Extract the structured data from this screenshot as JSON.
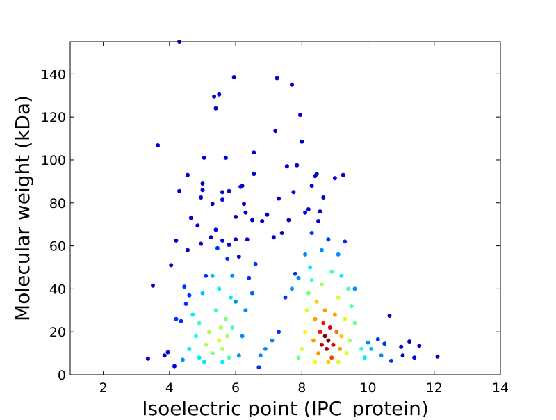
{
  "chart_data": {
    "type": "scatter",
    "title": "",
    "xlabel": "Isoelectric point (IPC_protein)",
    "ylabel": "Molecular weight (kDa)",
    "xlim": [
      1,
      14
    ],
    "ylim": [
      0,
      155
    ],
    "xticks": [
      2,
      4,
      6,
      8,
      10,
      12,
      14
    ],
    "xtick_labels": [
      "2",
      "4",
      "6",
      "8",
      "10",
      "12",
      "14"
    ],
    "yticks": [
      0,
      20,
      40,
      60,
      80,
      100,
      120,
      140
    ],
    "ytick_labels": [
      "0",
      "20",
      "40",
      "60",
      "80",
      "100",
      "120",
      "140"
    ],
    "grid": false,
    "legend": "none",
    "colormap": "jet (point density)",
    "colors": {
      "low_density": "#00008f",
      "mid_low": "#0060ff",
      "mid": "#00e0ff",
      "mid_high": "#f0f000",
      "high": "#ff3000",
      "peak": "#800000"
    },
    "points": [
      [
        3.35,
        7.5,
        0
      ],
      [
        3.5,
        41.5,
        0
      ],
      [
        3.65,
        106.8,
        0
      ],
      [
        3.85,
        9,
        0
      ],
      [
        3.95,
        10.5,
        0
      ],
      [
        4.05,
        51,
        0
      ],
      [
        4.15,
        4,
        0
      ],
      [
        4.2,
        62.5,
        0
      ],
      [
        4.2,
        26,
        0.1
      ],
      [
        4.3,
        155,
        0
      ],
      [
        4.3,
        85.5,
        0
      ],
      [
        4.35,
        25,
        0.1
      ],
      [
        4.45,
        41,
        0.1
      ],
      [
        4.5,
        33,
        0.1
      ],
      [
        4.55,
        93,
        0
      ],
      [
        4.55,
        58,
        0
      ],
      [
        4.6,
        37,
        0.1
      ],
      [
        4.65,
        73,
        0
      ],
      [
        4.85,
        69.5,
        0
      ],
      [
        4.95,
        61,
        0
      ],
      [
        4.95,
        82.5,
        0
      ],
      [
        5.0,
        89,
        0
      ],
      [
        5.0,
        86,
        0
      ],
      [
        5.05,
        101,
        0
      ],
      [
        5.1,
        46,
        0.1
      ],
      [
        5.25,
        64,
        0
      ],
      [
        5.3,
        79.5,
        0
      ],
      [
        5.35,
        129.5,
        0
      ],
      [
        5.4,
        124,
        0
      ],
      [
        5.4,
        67.5,
        0
      ],
      [
        5.45,
        59,
        0.1
      ],
      [
        5.5,
        130.5,
        0
      ],
      [
        5.6,
        62.5,
        0
      ],
      [
        5.6,
        85,
        0
      ],
      [
        5.6,
        81.5,
        0
      ],
      [
        5.7,
        101,
        0
      ],
      [
        5.75,
        54,
        0.1
      ],
      [
        5.8,
        85.5,
        0
      ],
      [
        5.8,
        60.5,
        0
      ],
      [
        5.95,
        138.5,
        0
      ],
      [
        6.0,
        73.5,
        0
      ],
      [
        6.0,
        63,
        0
      ],
      [
        6.1,
        55,
        0
      ],
      [
        6.15,
        87.5,
        0
      ],
      [
        6.2,
        88,
        0
      ],
      [
        6.25,
        79.5,
        0
      ],
      [
        6.3,
        75.5,
        0
      ],
      [
        6.35,
        63,
        0
      ],
      [
        6.5,
        72,
        0
      ],
      [
        6.55,
        103.5,
        0
      ],
      [
        6.55,
        93.5,
        0
      ],
      [
        6.6,
        51.5,
        0.1
      ],
      [
        6.8,
        71.5,
        0
      ],
      [
        6.95,
        74.5,
        0
      ],
      [
        7.15,
        64,
        0
      ],
      [
        7.2,
        113.5,
        0
      ],
      [
        7.25,
        138,
        0
      ],
      [
        7.3,
        82,
        0
      ],
      [
        7.4,
        66,
        0
      ],
      [
        7.55,
        97,
        0
      ],
      [
        7.6,
        72,
        0
      ],
      [
        7.7,
        135,
        0
      ],
      [
        7.75,
        85,
        0
      ],
      [
        7.85,
        97.5,
        0
      ],
      [
        7.95,
        121,
        0
      ],
      [
        8.0,
        108.5,
        0
      ],
      [
        8.1,
        75.5,
        0
      ],
      [
        8.2,
        77,
        0
      ],
      [
        8.3,
        88,
        0
      ],
      [
        8.4,
        92.5,
        0
      ],
      [
        8.45,
        93.5,
        0
      ],
      [
        8.5,
        71.5,
        0
      ],
      [
        8.55,
        76,
        0
      ],
      [
        8.65,
        82.5,
        0
      ],
      [
        9.0,
        91.5,
        0
      ],
      [
        9.25,
        93,
        0
      ],
      [
        9.3,
        62,
        0.1
      ],
      [
        9.6,
        40,
        0.2
      ],
      [
        10.0,
        15,
        0.2
      ],
      [
        10.3,
        16.5,
        0.1
      ],
      [
        10.5,
        14.5,
        0.1
      ],
      [
        10.65,
        27.5,
        0
      ],
      [
        10.7,
        6.5,
        0.1
      ],
      [
        11.0,
        13,
        0
      ],
      [
        11.05,
        9,
        0
      ],
      [
        11.25,
        15.5,
        0
      ],
      [
        11.4,
        8,
        0
      ],
      [
        11.55,
        13.5,
        0
      ],
      [
        12.1,
        8.5,
        0
      ],
      [
        6.7,
        3.5,
        0.1
      ],
      [
        6.75,
        9,
        0.2
      ],
      [
        6.9,
        12,
        0.2
      ],
      [
        7.1,
        16,
        0.2
      ],
      [
        7.3,
        20,
        0.1
      ],
      [
        7.5,
        36,
        0.1
      ],
      [
        7.7,
        40,
        0.2
      ],
      [
        7.8,
        47,
        0.1
      ],
      [
        7.9,
        45,
        0.2
      ],
      [
        8.1,
        56,
        0.2
      ],
      [
        8.3,
        66,
        0.1
      ],
      [
        8.6,
        58,
        0.2
      ],
      [
        8.8,
        63,
        0.1
      ],
      [
        9.1,
        56,
        0.2
      ],
      [
        9.2,
        46,
        0.3
      ],
      [
        9.5,
        32,
        0.4
      ],
      [
        9.6,
        24,
        0.45
      ],
      [
        9.8,
        12,
        0.35
      ],
      [
        9.9,
        8,
        0.3
      ],
      [
        10.1,
        12,
        0.25
      ],
      [
        10.4,
        9,
        0.2
      ],
      [
        6.4,
        45,
        0.1
      ],
      [
        6.5,
        38,
        0.15
      ],
      [
        6.3,
        30,
        0.2
      ],
      [
        6.2,
        18,
        0.2
      ],
      [
        6.1,
        9,
        0.2
      ],
      [
        5.9,
        46,
        0.2
      ],
      [
        6.0,
        34,
        0.2
      ],
      [
        4.4,
        7,
        0.2
      ],
      [
        4.6,
        12,
        0.3
      ],
      [
        4.8,
        18,
        0.35
      ],
      [
        4.7,
        28,
        0.3
      ],
      [
        4.9,
        24,
        0.4
      ],
      [
        5.1,
        14,
        0.5
      ],
      [
        5.2,
        20,
        0.5
      ],
      [
        5.3,
        10,
        0.45
      ],
      [
        5.4,
        30,
        0.4
      ],
      [
        5.5,
        16,
        0.55
      ],
      [
        5.55,
        22,
        0.5
      ],
      [
        5.6,
        12,
        0.5
      ],
      [
        5.7,
        26,
        0.45
      ],
      [
        5.75,
        18,
        0.5
      ],
      [
        5.8,
        8,
        0.4
      ],
      [
        5.85,
        36,
        0.3
      ],
      [
        5.9,
        22,
        0.4
      ],
      [
        5.5,
        40,
        0.3
      ],
      [
        5.3,
        46,
        0.25
      ],
      [
        5.0,
        38,
        0.25
      ],
      [
        4.9,
        8,
        0.3
      ],
      [
        5.05,
        6,
        0.3
      ],
      [
        5.6,
        6,
        0.3
      ],
      [
        7.9,
        8,
        0.45
      ],
      [
        8.0,
        12,
        0.55
      ],
      [
        8.1,
        20,
        0.6
      ],
      [
        8.15,
        30,
        0.55
      ],
      [
        8.2,
        38,
        0.45
      ],
      [
        8.3,
        44,
        0.4
      ],
      [
        8.35,
        16,
        0.7
      ],
      [
        8.4,
        26,
        0.7
      ],
      [
        8.45,
        34,
        0.65
      ],
      [
        8.5,
        10,
        0.7
      ],
      [
        8.55,
        20,
        0.85
      ],
      [
        8.6,
        14,
        0.95
      ],
      [
        8.65,
        24,
        0.85
      ],
      [
        8.7,
        18,
        1.0
      ],
      [
        8.7,
        30,
        0.7
      ],
      [
        8.75,
        12,
        0.95
      ],
      [
        8.8,
        16,
        1.0
      ],
      [
        8.85,
        22,
        0.9
      ],
      [
        8.9,
        8,
        0.8
      ],
      [
        8.95,
        14,
        0.9
      ],
      [
        9.0,
        28,
        0.7
      ],
      [
        9.05,
        20,
        0.75
      ],
      [
        9.1,
        36,
        0.55
      ],
      [
        9.15,
        12,
        0.7
      ],
      [
        9.2,
        18,
        0.65
      ],
      [
        9.3,
        26,
        0.55
      ],
      [
        9.35,
        10,
        0.55
      ],
      [
        9.4,
        40,
        0.4
      ],
      [
        9.45,
        16,
        0.5
      ],
      [
        8.6,
        42,
        0.5
      ],
      [
        8.9,
        48,
        0.4
      ],
      [
        8.4,
        6,
        0.6
      ],
      [
        8.8,
        6,
        0.65
      ],
      [
        9.1,
        6,
        0.55
      ],
      [
        8.25,
        50,
        0.3
      ]
    ]
  }
}
